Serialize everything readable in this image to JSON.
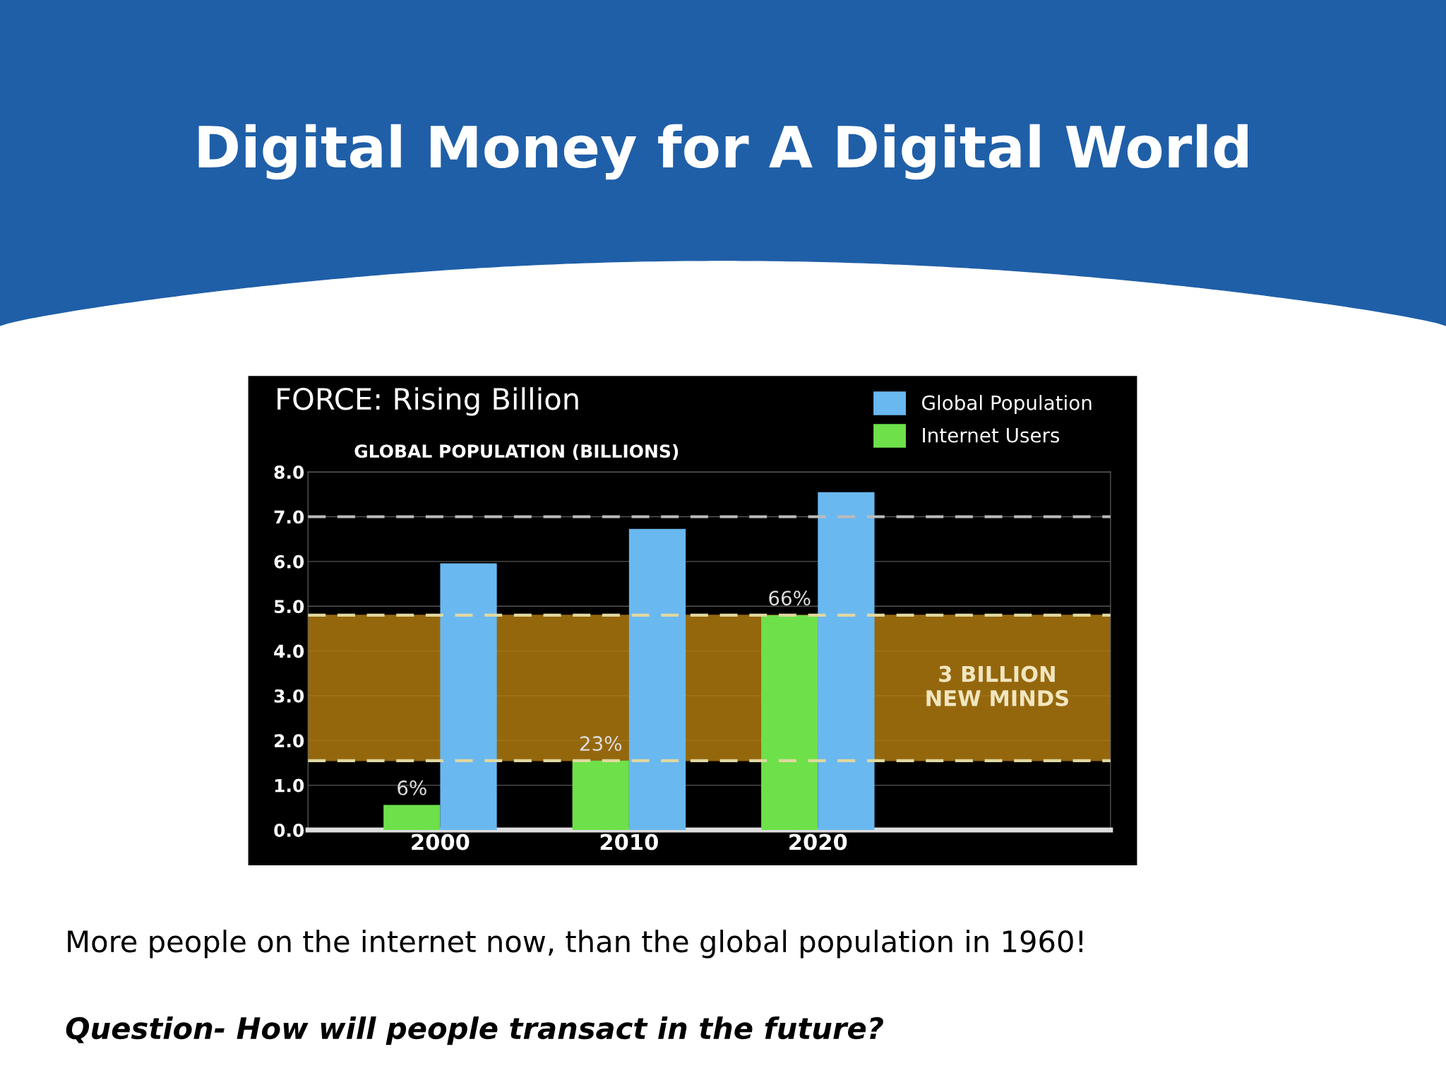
{
  "chart_data": {
    "type": "bar",
    "title": "Digital Money for A Digital World",
    "subtitle": "FORCE: Rising Billion",
    "ylabel": "GLOBAL POPULATION (BILLIONS)",
    "categories": [
      "2000",
      "2010",
      "2020"
    ],
    "series": [
      {
        "name": "Internet Users",
        "color": "#6ee04a",
        "values": [
          0.56,
          1.55,
          4.8
        ]
      },
      {
        "name": "Global Population",
        "color": "#6ab8f0",
        "values": [
          5.96,
          6.73,
          7.55
        ]
      }
    ],
    "ylim": [
      0,
      8
    ],
    "yticks": [
      {
        "value": 0,
        "label": "0.0"
      },
      {
        "value": 1,
        "label": "1.0"
      },
      {
        "value": 2,
        "label": "2.0"
      },
      {
        "value": 3,
        "label": "3.0"
      },
      {
        "value": 4,
        "label": "4.0"
      },
      {
        "value": 5,
        "label": "5.0"
      },
      {
        "value": 6,
        "label": "6.0"
      },
      {
        "value": 7,
        "label": "7.0"
      },
      {
        "value": 8,
        "label": "8.0"
      }
    ],
    "ref_lines": [
      {
        "axis": "y",
        "value": 7,
        "color": "#bbbbbb",
        "line_style": "dashed"
      },
      {
        "axis": "y",
        "value": 4.8,
        "color": "#e0d8a0",
        "line_style": "dashed"
      },
      {
        "axis": "y",
        "value": 1.55,
        "color": "#e0d8a0",
        "line_style": "dashed"
      }
    ],
    "bands": [
      {
        "axis": "y",
        "from": 1.55,
        "to": 4.8,
        "label": "3 BILLION\nNEW MINDS",
        "color": "#b07a10"
      }
    ],
    "grid": "y",
    "legend": "top right",
    "annotations": [
      {
        "text": "6%",
        "x": "2000",
        "y": 0.56
      },
      {
        "text": "23%",
        "x": "2010",
        "y": 1.55
      },
      {
        "text": "66%",
        "x": "2020",
        "y": 4.8
      },
      "More people on the internet now, than the global population in 1960!",
      "Question- How will people transact in the future?"
    ]
  }
}
